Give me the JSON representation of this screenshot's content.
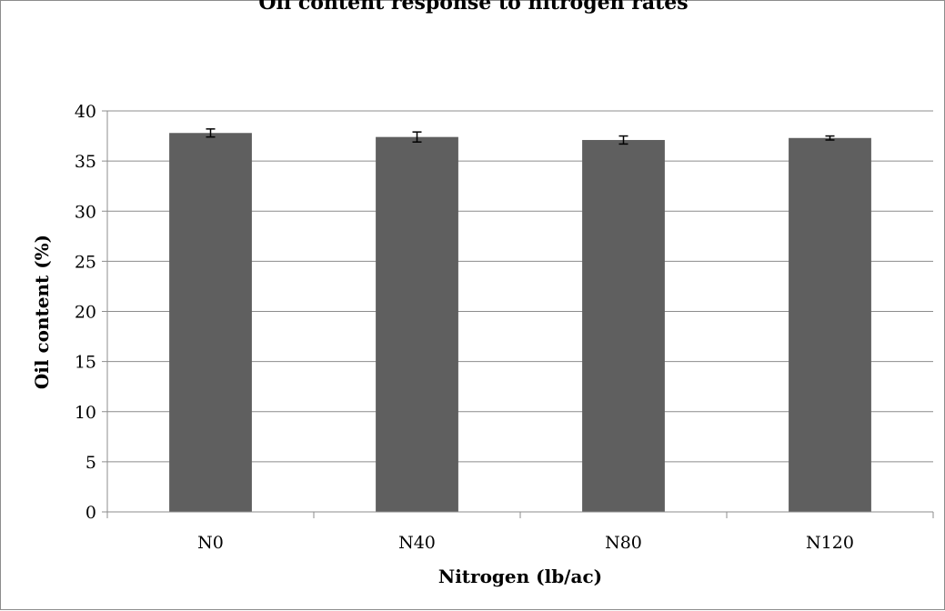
{
  "chart_data": {
    "type": "bar",
    "title": "Oil content response to nitrogen rates",
    "xlabel": "Nitrogen (lb/ac)",
    "ylabel": "Oil content (%)",
    "categories": [
      "N0",
      "N40",
      "N80",
      "N120"
    ],
    "series": [
      {
        "values": [
          37.8,
          37.4,
          37.1,
          37.3
        ],
        "errors": [
          0.4,
          0.5,
          0.4,
          0.2
        ]
      }
    ],
    "ylim": [
      0,
      40
    ],
    "yticks": [
      0,
      5,
      10,
      15,
      20,
      25,
      30,
      35,
      40
    ],
    "grid": true,
    "legend": "none",
    "colors": {
      "bar": "#5f5f5f",
      "grid": "#8c8c8c",
      "axis": "#8c8c8c",
      "error_bar": "#000000"
    }
  }
}
